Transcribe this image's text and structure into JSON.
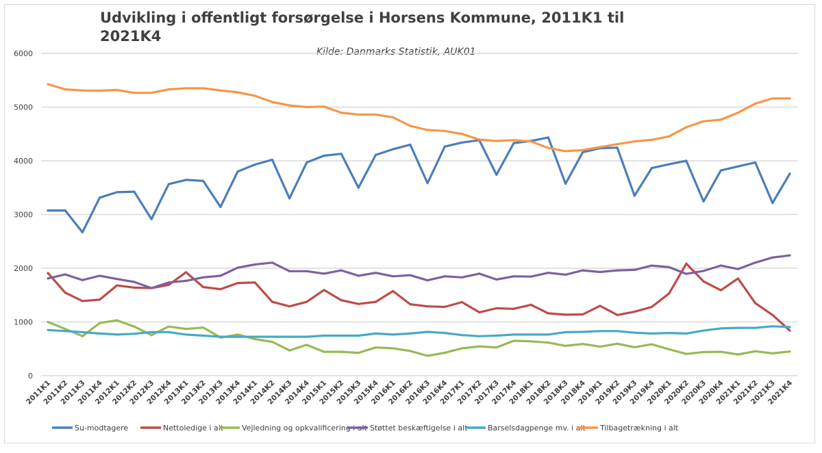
{
  "chart_data": {
    "type": "line",
    "title": "Udvikling i offentligt forsørgelse i Horsens Kommune, 2011K1 til 2021K4",
    "title_lines": [
      "Udvikling i offentligt forsørgelse i Horsens Kommune, 2011K1 til",
      "2021K4"
    ],
    "subtitle": "Kilde: Danmarks Statistik, AUK01",
    "xlabel": "",
    "ylabel": "",
    "ylim": [
      0,
      6000
    ],
    "yticks": [
      0,
      1000,
      2000,
      3000,
      4000,
      5000,
      6000
    ],
    "grid": true,
    "legend_position": "bottom",
    "categories": [
      "2011K1",
      "2011K2",
      "2011K3",
      "2011K4",
      "2012K1",
      "2012K2",
      "2012K3",
      "2012K4",
      "2013K1",
      "2013K2",
      "2013K3",
      "2013K4",
      "2014K1",
      "2014K2",
      "2014K3",
      "2014K4",
      "2015K1",
      "2015K2",
      "2015K3",
      "2015K4",
      "2016K1",
      "2016K2",
      "2016K3",
      "2016K4",
      "2017K1",
      "2017K2",
      "2017K3",
      "2017K4",
      "2018K1",
      "2018K2",
      "2018K3",
      "2018K4",
      "2019K1",
      "2019K2",
      "2019K3",
      "2019K4",
      "2020K1",
      "2020K2",
      "2020K3",
      "2020K4",
      "2021K1",
      "2021K2",
      "2021K3",
      "2021K4"
    ],
    "series": [
      {
        "name": "Su-modtagere",
        "color": "#4a7ebb",
        "values": [
          3075,
          3075,
          2670,
          3315,
          3415,
          3425,
          2915,
          3565,
          3645,
          3625,
          3140,
          3800,
          3930,
          4020,
          3300,
          3970,
          4095,
          4130,
          3500,
          4110,
          4215,
          4300,
          3585,
          4265,
          4340,
          4385,
          3740,
          4330,
          4370,
          4435,
          3575,
          4160,
          4235,
          4245,
          3350,
          3865,
          3935,
          4000,
          3245,
          3820,
          3895,
          3970,
          3215,
          3760
        ]
      },
      {
        "name": "Nettoledige i alt",
        "color": "#be4b48",
        "values": [
          1910,
          1545,
          1390,
          1415,
          1680,
          1640,
          1630,
          1690,
          1925,
          1650,
          1610,
          1725,
          1735,
          1375,
          1290,
          1375,
          1595,
          1405,
          1335,
          1375,
          1575,
          1330,
          1290,
          1280,
          1370,
          1180,
          1255,
          1245,
          1320,
          1160,
          1135,
          1140,
          1300,
          1130,
          1190,
          1280,
          1530,
          2085,
          1755,
          1590,
          1810,
          1350,
          1130,
          840
        ]
      },
      {
        "name": "Vejledning og opkvalificering i alt",
        "color": "#98b954",
        "values": [
          1000,
          870,
          735,
          980,
          1030,
          915,
          755,
          915,
          870,
          895,
          710,
          765,
          680,
          630,
          470,
          575,
          445,
          445,
          425,
          525,
          510,
          460,
          370,
          425,
          510,
          545,
          525,
          650,
          640,
          615,
          555,
          590,
          540,
          595,
          530,
          585,
          490,
          405,
          440,
          445,
          395,
          455,
          415,
          450
        ]
      },
      {
        "name": "Støttet beskæftigelse i alt",
        "color": "#7d60a0",
        "values": [
          1810,
          1885,
          1780,
          1860,
          1800,
          1745,
          1630,
          1735,
          1765,
          1830,
          1860,
          2010,
          2070,
          2105,
          1945,
          1945,
          1900,
          1960,
          1860,
          1915,
          1850,
          1870,
          1775,
          1850,
          1830,
          1900,
          1790,
          1850,
          1845,
          1915,
          1880,
          1960,
          1930,
          1960,
          1970,
          2050,
          2020,
          1895,
          1950,
          2050,
          1985,
          2105,
          2200,
          2240
        ]
      },
      {
        "name": "Barselsdagpenge mv. i alt",
        "color": "#46aac5",
        "values": [
          850,
          830,
          810,
          785,
          765,
          780,
          810,
          810,
          765,
          745,
          725,
          725,
          725,
          725,
          725,
          725,
          745,
          745,
          745,
          785,
          765,
          785,
          815,
          795,
          755,
          735,
          745,
          765,
          765,
          765,
          810,
          815,
          830,
          830,
          800,
          785,
          795,
          785,
          840,
          880,
          890,
          890,
          920,
          905
        ]
      },
      {
        "name": "Tilbagetrækning i alt",
        "color": "#f79646",
        "values": [
          5425,
          5330,
          5310,
          5305,
          5320,
          5265,
          5265,
          5330,
          5350,
          5350,
          5310,
          5275,
          5210,
          5095,
          5030,
          5000,
          5010,
          4895,
          4860,
          4860,
          4810,
          4650,
          4575,
          4555,
          4500,
          4395,
          4370,
          4385,
          4360,
          4240,
          4180,
          4200,
          4255,
          4310,
          4360,
          4390,
          4455,
          4625,
          4735,
          4765,
          4895,
          5065,
          5160,
          5160
        ]
      }
    ]
  }
}
